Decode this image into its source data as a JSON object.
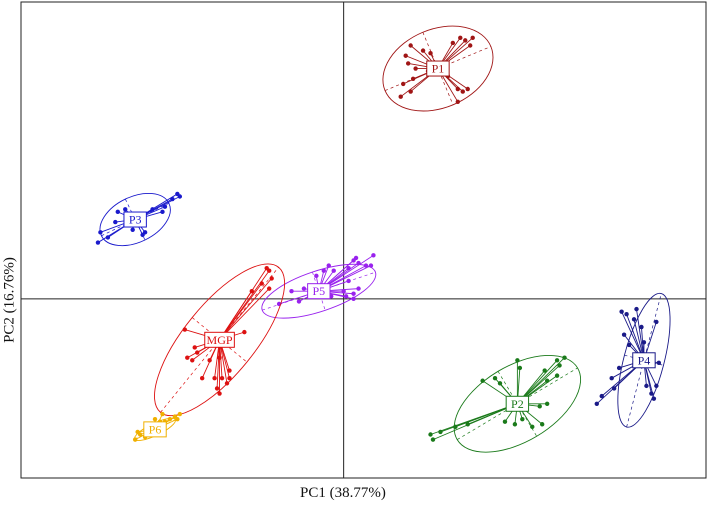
{
  "chart_data": {
    "type": "scatter",
    "subtype": "PCA biplot with group spiders and confidence ellipses",
    "xlabel": "PC1 (38.77%)",
    "ylabel": "PC2 (16.76%)",
    "xlim": [
      -6.5,
      7.3
    ],
    "ylim": [
      -3.5,
      5.8
    ],
    "reference_lines": {
      "x": 0,
      "y": 0
    },
    "grid": false,
    "legend": "none (labels at group centroids)",
    "groups": [
      {
        "label": "P1",
        "color": "#a01515",
        "centroid": [
          1.9,
          4.5
        ],
        "ellipse": {
          "rx": 1.15,
          "ry": 0.78,
          "angle_deg": 22
        },
        "points": [
          [
            1.25,
            4.75
          ],
          [
            1.35,
            4.95
          ],
          [
            1.3,
            4.6
          ],
          [
            1.4,
            4.3
          ],
          [
            1.2,
            4.2
          ],
          [
            1.35,
            4.05
          ],
          [
            1.45,
            4.5
          ],
          [
            1.6,
            4.85
          ],
          [
            1.7,
            4.45
          ],
          [
            2.2,
            5.0
          ],
          [
            2.35,
            5.1
          ],
          [
            2.45,
            5.05
          ],
          [
            2.6,
            5.1
          ],
          [
            2.55,
            4.95
          ],
          [
            2.1,
            4.35
          ],
          [
            2.3,
            4.1
          ],
          [
            2.4,
            4.05
          ],
          [
            2.5,
            4.1
          ],
          [
            2.3,
            3.85
          ],
          [
            1.15,
            3.95
          ],
          [
            1.75,
            4.8
          ]
        ]
      },
      {
        "label": "P3",
        "color": "#1a1acc",
        "centroid": [
          -4.2,
          1.55
        ],
        "ellipse": {
          "rx": 0.75,
          "ry": 0.45,
          "angle_deg": 25
        },
        "points": [
          [
            -4.9,
            1.3
          ],
          [
            -4.95,
            1.1
          ],
          [
            -4.75,
            1.2
          ],
          [
            -4.6,
            1.5
          ],
          [
            -4.55,
            1.7
          ],
          [
            -4.4,
            1.75
          ],
          [
            -4.25,
            1.35
          ],
          [
            -4.0,
            1.3
          ],
          [
            -4.05,
            1.25
          ],
          [
            -3.85,
            1.75
          ],
          [
            -3.65,
            1.7
          ],
          [
            -3.45,
            1.95
          ],
          [
            -3.35,
            2.05
          ],
          [
            -3.3,
            2.0
          ],
          [
            -3.6,
            1.8
          ]
        ]
      },
      {
        "label": "P5",
        "color": "#9922ee",
        "centroid": [
          -0.5,
          0.15
        ],
        "ellipse": {
          "rx": 1.2,
          "ry": 0.4,
          "angle_deg": 18
        },
        "points": [
          [
            -1.3,
            -0.1
          ],
          [
            -1.05,
            0.15
          ],
          [
            -0.9,
            -0.05
          ],
          [
            -0.8,
            0.2
          ],
          [
            -0.55,
            0.45
          ],
          [
            -0.4,
            0.55
          ],
          [
            -0.3,
            0.65
          ],
          [
            -0.2,
            0.55
          ],
          [
            0.1,
            0.35
          ],
          [
            0.1,
            0.6
          ],
          [
            0.2,
            0.75
          ],
          [
            0.25,
            0.8
          ],
          [
            0.3,
            0.7
          ],
          [
            0.45,
            0.65
          ],
          [
            0.55,
            0.65
          ],
          [
            0.6,
            0.85
          ],
          [
            0.3,
            0.2
          ],
          [
            0.2,
            0.1
          ],
          [
            0.0,
            0.15
          ],
          [
            0.2,
            0.0
          ],
          [
            0.05,
            0.05
          ],
          [
            -0.25,
            0.05
          ]
        ]
      },
      {
        "label": "MGP",
        "color": "#dd1111",
        "centroid": [
          -2.5,
          -0.8
        ],
        "ellipse": {
          "rx": 1.85,
          "ry": 0.7,
          "angle_deg": 50
        },
        "points": [
          [
            -3.2,
            -0.6
          ],
          [
            -3.15,
            -1.15
          ],
          [
            -3.05,
            -1.2
          ],
          [
            -3.0,
            -0.95
          ],
          [
            -2.95,
            -1.05
          ],
          [
            -2.85,
            -1.55
          ],
          [
            -2.7,
            -1.2
          ],
          [
            -2.6,
            -1.55
          ],
          [
            -2.55,
            -1.75
          ],
          [
            -2.5,
            -1.85
          ],
          [
            -2.45,
            -1.55
          ],
          [
            -2.35,
            -1.65
          ],
          [
            -2.3,
            -1.55
          ],
          [
            -2.3,
            -1.4
          ],
          [
            -2.0,
            -0.65
          ],
          [
            -1.85,
            0.15
          ],
          [
            -1.65,
            0.3
          ],
          [
            -1.55,
            0.6
          ],
          [
            -1.5,
            0.55
          ],
          [
            -1.45,
            0.4
          ],
          [
            -1.5,
            0.2
          ],
          [
            -2.5,
            -1.15
          ]
        ]
      },
      {
        "label": "P6",
        "color": "#f0b000",
        "centroid": [
          -3.8,
          -2.55
        ],
        "ellipse": {
          "rx": 0.45,
          "ry": 0.12,
          "angle_deg": 25
        },
        "points": [
          [
            -4.2,
            -2.75
          ],
          [
            -4.1,
            -2.65
          ],
          [
            -4.0,
            -2.7
          ],
          [
            -3.95,
            -2.5
          ],
          [
            -3.85,
            -2.55
          ],
          [
            -3.8,
            -2.35
          ],
          [
            -3.75,
            -2.45
          ],
          [
            -3.7,
            -2.4
          ],
          [
            -3.65,
            -2.25
          ],
          [
            -3.6,
            -2.4
          ],
          [
            -3.5,
            -2.35
          ],
          [
            -3.4,
            -2.3
          ],
          [
            -3.35,
            -2.35
          ],
          [
            -3.3,
            -2.25
          ],
          [
            -4.15,
            -2.6
          ],
          [
            -3.9,
            -2.6
          ]
        ]
      },
      {
        "label": "P2",
        "color": "#1a7a1a",
        "centroid": [
          3.5,
          -2.05
        ],
        "ellipse": {
          "rx": 1.4,
          "ry": 0.75,
          "angle_deg": 30
        },
        "points": [
          [
            1.75,
            -2.65
          ],
          [
            1.8,
            -2.75
          ],
          [
            1.95,
            -2.6
          ],
          [
            2.25,
            -2.5
          ],
          [
            2.5,
            -2.45
          ],
          [
            2.8,
            -1.6
          ],
          [
            3.05,
            -1.55
          ],
          [
            3.15,
            -1.65
          ],
          [
            3.25,
            -2.4
          ],
          [
            3.45,
            -2.45
          ],
          [
            3.5,
            -1.2
          ],
          [
            3.55,
            -1.35
          ],
          [
            3.6,
            -2.35
          ],
          [
            3.8,
            -2.5
          ],
          [
            4.0,
            -2.45
          ],
          [
            4.05,
            -1.4
          ],
          [
            4.1,
            -1.6
          ],
          [
            4.3,
            -1.5
          ],
          [
            4.35,
            -1.3
          ],
          [
            4.45,
            -1.15
          ],
          [
            4.3,
            -1.2
          ],
          [
            4.1,
            -2.05
          ],
          [
            3.95,
            -2.1
          ]
        ]
      },
      {
        "label": "P4",
        "color": "#1a1a88",
        "centroid": [
          6.05,
          -1.2
        ],
        "ellipse": {
          "rx": 1.35,
          "ry": 0.4,
          "angle_deg": 75
        },
        "points": [
          [
            5.1,
            -2.05
          ],
          [
            5.2,
            -1.9
          ],
          [
            5.4,
            -1.55
          ],
          [
            5.45,
            -1.75
          ],
          [
            5.55,
            -1.35
          ],
          [
            5.6,
            -0.25
          ],
          [
            5.65,
            -0.7
          ],
          [
            5.7,
            -0.3
          ],
          [
            5.75,
            -0.9
          ],
          [
            5.85,
            -0.4
          ],
          [
            5.9,
            -0.2
          ],
          [
            6.0,
            -0.55
          ],
          [
            6.05,
            -0.85
          ],
          [
            6.1,
            -1.7
          ],
          [
            6.2,
            -1.85
          ],
          [
            6.25,
            -1.95
          ],
          [
            6.3,
            -1.7
          ],
          [
            6.3,
            -0.45
          ],
          [
            6.35,
            -1.25
          ]
        ]
      }
    ]
  }
}
